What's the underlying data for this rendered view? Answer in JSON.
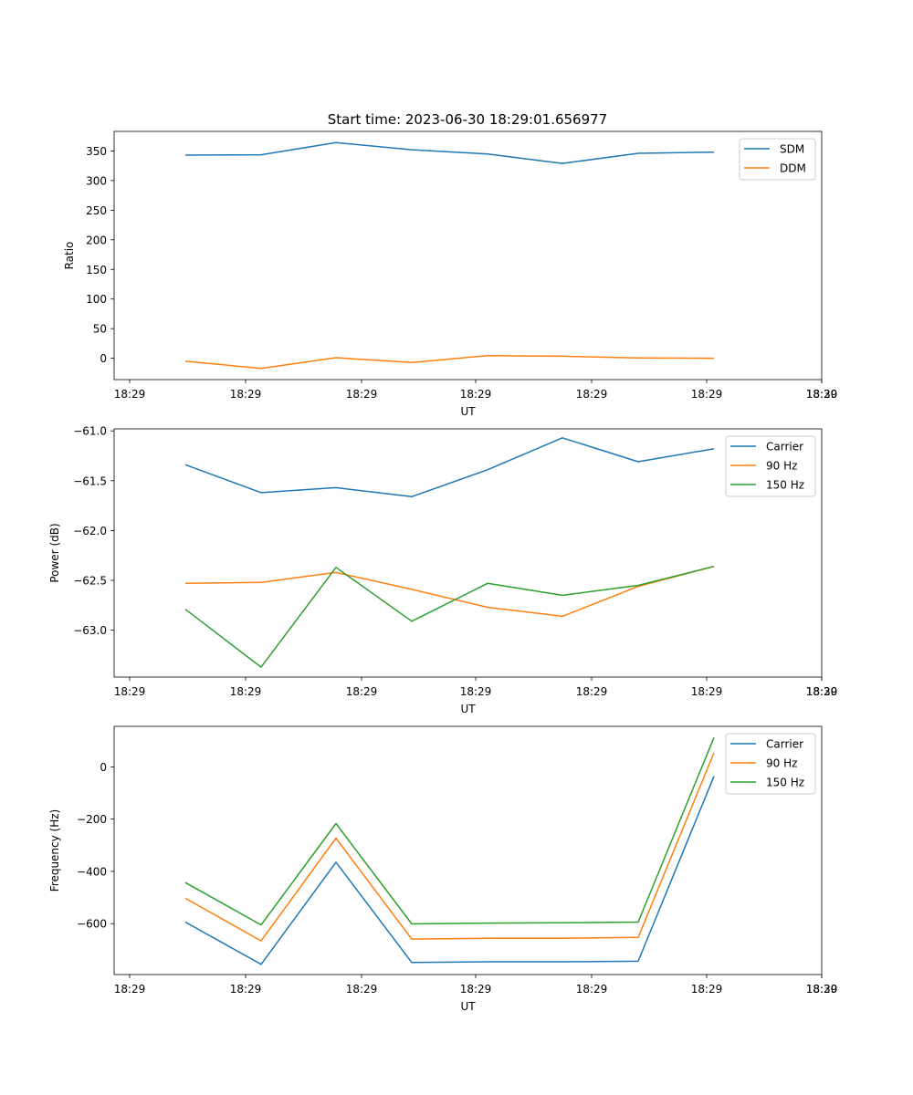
{
  "figure_title": "Start time: 2023-06-30 18:29:01.656977",
  "chart_data": [
    {
      "type": "line",
      "xlabel": "UT",
      "ylabel": "Ratio",
      "x_tick_labels": [
        "18:29",
        "18:29",
        "18:29",
        "18:29",
        "18:29",
        "18:29",
        "18:29",
        "18:30"
      ],
      "yticks": [
        0,
        50,
        100,
        150,
        200,
        250,
        300,
        350
      ],
      "ylim": [
        -36,
        383
      ],
      "grid": false,
      "legend_position": "top-right",
      "series": [
        {
          "name": "SDM",
          "color": "#1f77b4",
          "values": [
            343,
            343.5,
            364,
            352,
            345,
            329,
            346,
            348
          ]
        },
        {
          "name": "DDM",
          "color": "#ff7f0e",
          "values": [
            -5,
            -17,
            1,
            -7,
            4.5,
            3.5,
            0.5,
            0
          ]
        }
      ]
    },
    {
      "type": "line",
      "xlabel": "UT",
      "ylabel": "Power (dB)",
      "x_tick_labels": [
        "18:29",
        "18:29",
        "18:29",
        "18:29",
        "18:29",
        "18:29",
        "18:29",
        "18:30"
      ],
      "yticks": [
        -63.0,
        -62.5,
        -62.0,
        -61.5,
        -61.0
      ],
      "ytick_labels": [
        "−63.0",
        "−62.5",
        "−62.0",
        "−61.5",
        "−61.0"
      ],
      "ylim": [
        -63.47,
        -60.98
      ],
      "grid": false,
      "legend_position": "top-right",
      "series": [
        {
          "name": "Carrier",
          "color": "#1f77b4",
          "values": [
            -61.34,
            -61.62,
            -61.57,
            -61.66,
            -61.39,
            -61.07,
            -61.31,
            -61.18
          ]
        },
        {
          "name": "90 Hz",
          "color": "#ff7f0e",
          "values": [
            -62.53,
            -62.52,
            -62.42,
            -62.59,
            -62.77,
            -62.86,
            -62.56,
            -62.36
          ]
        },
        {
          "name": "150 Hz",
          "color": "#2ca02c",
          "values": [
            -62.79,
            -63.37,
            -62.37,
            -62.91,
            -62.53,
            -62.65,
            -62.55,
            -62.36
          ]
        }
      ]
    },
    {
      "type": "line",
      "xlabel": "UT",
      "ylabel": "Frequency (Hz)",
      "x_tick_labels": [
        "18:29",
        "18:29",
        "18:29",
        "18:29",
        "18:29",
        "18:29",
        "18:29",
        "18:30"
      ],
      "yticks": [
        -600,
        -400,
        -200,
        0
      ],
      "ytick_labels": [
        "−600",
        "−400",
        "−200",
        "0"
      ],
      "ylim": [
        -795,
        155
      ],
      "grid": false,
      "legend_position": "top-right",
      "series": [
        {
          "name": "Carrier",
          "color": "#1f77b4",
          "values": [
            -594,
            -756,
            -365,
            -749,
            -746,
            -746,
            -744,
            -36
          ]
        },
        {
          "name": "90 Hz",
          "color": "#ff7f0e",
          "values": [
            -503,
            -666,
            -273,
            -659,
            -656,
            -656,
            -653,
            54
          ]
        },
        {
          "name": "150 Hz",
          "color": "#2ca02c",
          "values": [
            -443,
            -605,
            -217,
            -601,
            -598,
            -597,
            -594,
            112
          ]
        }
      ]
    }
  ]
}
